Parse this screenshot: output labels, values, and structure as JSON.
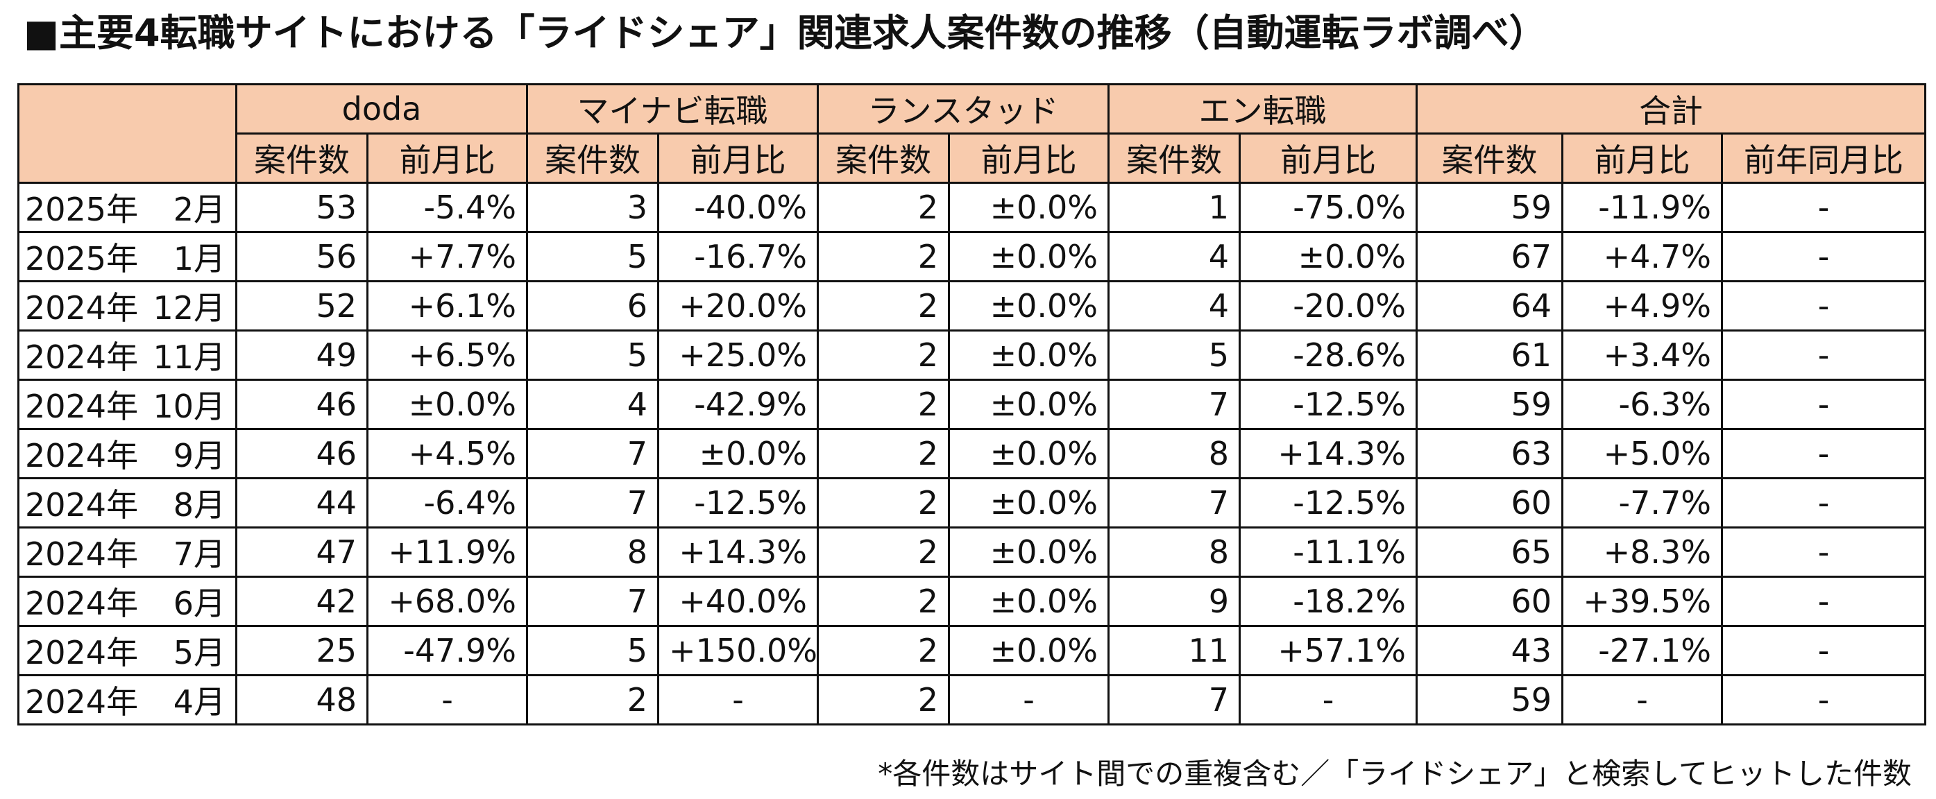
{
  "title": "■主要4転職サイトにおける「ライドシェア」関連求人案件数の推移（自動運転ラボ調べ）",
  "header": {
    "sites": [
      "doda",
      "マイナビ転職",
      "ランスタッド",
      "エン転職",
      "合計"
    ],
    "sub": {
      "count": "案件数",
      "mom": "前月比",
      "yoy": "前年同月比"
    }
  },
  "rows": [
    {
      "year": "2025年",
      "month": "2月",
      "doda": [
        "53",
        "-5.4%"
      ],
      "mynavi": [
        "3",
        "-40.0%"
      ],
      "randstad": [
        "2",
        "±0.0%"
      ],
      "en": [
        "1",
        "-75.0%"
      ],
      "total": [
        "59",
        "-11.9%",
        "-"
      ]
    },
    {
      "year": "2025年",
      "month": "1月",
      "doda": [
        "56",
        "+7.7%"
      ],
      "mynavi": [
        "5",
        "-16.7%"
      ],
      "randstad": [
        "2",
        "±0.0%"
      ],
      "en": [
        "4",
        "±0.0%"
      ],
      "total": [
        "67",
        "+4.7%",
        "-"
      ]
    },
    {
      "year": "2024年",
      "month": "12月",
      "doda": [
        "52",
        "+6.1%"
      ],
      "mynavi": [
        "6",
        "+20.0%"
      ],
      "randstad": [
        "2",
        "±0.0%"
      ],
      "en": [
        "4",
        "-20.0%"
      ],
      "total": [
        "64",
        "+4.9%",
        "-"
      ]
    },
    {
      "year": "2024年",
      "month": "11月",
      "doda": [
        "49",
        "+6.5%"
      ],
      "mynavi": [
        "5",
        "+25.0%"
      ],
      "randstad": [
        "2",
        "±0.0%"
      ],
      "en": [
        "5",
        "-28.6%"
      ],
      "total": [
        "61",
        "+3.4%",
        "-"
      ]
    },
    {
      "year": "2024年",
      "month": "10月",
      "doda": [
        "46",
        "±0.0%"
      ],
      "mynavi": [
        "4",
        "-42.9%"
      ],
      "randstad": [
        "2",
        "±0.0%"
      ],
      "en": [
        "7",
        "-12.5%"
      ],
      "total": [
        "59",
        "-6.3%",
        "-"
      ]
    },
    {
      "year": "2024年",
      "month": "9月",
      "doda": [
        "46",
        "+4.5%"
      ],
      "mynavi": [
        "7",
        "±0.0%"
      ],
      "randstad": [
        "2",
        "±0.0%"
      ],
      "en": [
        "8",
        "+14.3%"
      ],
      "total": [
        "63",
        "+5.0%",
        "-"
      ]
    },
    {
      "year": "2024年",
      "month": "8月",
      "doda": [
        "44",
        "-6.4%"
      ],
      "mynavi": [
        "7",
        "-12.5%"
      ],
      "randstad": [
        "2",
        "±0.0%"
      ],
      "en": [
        "7",
        "-12.5%"
      ],
      "total": [
        "60",
        "-7.7%",
        "-"
      ]
    },
    {
      "year": "2024年",
      "month": "7月",
      "doda": [
        "47",
        "+11.9%"
      ],
      "mynavi": [
        "8",
        "+14.3%"
      ],
      "randstad": [
        "2",
        "±0.0%"
      ],
      "en": [
        "8",
        "-11.1%"
      ],
      "total": [
        "65",
        "+8.3%",
        "-"
      ]
    },
    {
      "year": "2024年",
      "month": "6月",
      "doda": [
        "42",
        "+68.0%"
      ],
      "mynavi": [
        "7",
        "+40.0%"
      ],
      "randstad": [
        "2",
        "±0.0%"
      ],
      "en": [
        "9",
        "-18.2%"
      ],
      "total": [
        "60",
        "+39.5%",
        "-"
      ]
    },
    {
      "year": "2024年",
      "month": "5月",
      "doda": [
        "25",
        "-47.9%"
      ],
      "mynavi": [
        "5",
        "+150.0%"
      ],
      "randstad": [
        "2",
        "±0.0%"
      ],
      "en": [
        "11",
        "+57.1%"
      ],
      "total": [
        "43",
        "-27.1%",
        "-"
      ]
    },
    {
      "year": "2024年",
      "month": "4月",
      "doda": [
        "48",
        "-"
      ],
      "mynavi": [
        "2",
        "-"
      ],
      "randstad": [
        "2",
        "-"
      ],
      "en": [
        "7",
        "-"
      ],
      "total": [
        "59",
        "-",
        "-"
      ]
    }
  ],
  "footnote": "*各件数はサイト間での重複含む／「ライドシェア」と検索してヒットした件数"
}
